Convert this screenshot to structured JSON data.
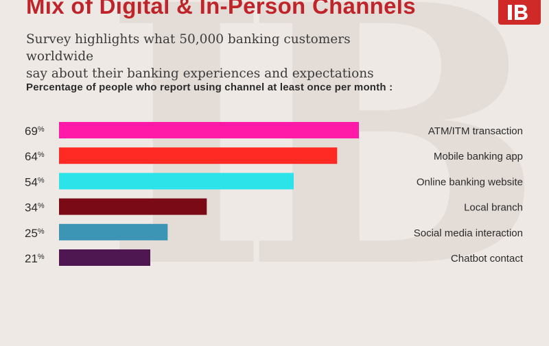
{
  "title": "Mix of Digital & In-Person Channels",
  "subtitle_lines": [
    "Survey highlights what 50,000 banking customers worldwide",
    "say about their banking experiences and expectations"
  ],
  "logo_text": "IB",
  "chart_data": {
    "type": "bar",
    "orientation": "horizontal",
    "title": "Percentage of people who report using channel at least once per month :",
    "categories": [
      "ATM/ITM transaction",
      "Mobile banking app",
      "Online banking website",
      "Local branch",
      "Social media interaction",
      "Chatbot contact"
    ],
    "values": [
      69,
      64,
      54,
      34,
      25,
      21
    ],
    "value_suffix": "%",
    "colors": [
      "#ff1aa8",
      "#ff2a24",
      "#2de3ea",
      "#7a0a15",
      "#3d95b5",
      "#4e1752"
    ],
    "xlim": [
      0,
      100
    ],
    "grid": false,
    "legend": "none",
    "category_labels_position": "right"
  }
}
